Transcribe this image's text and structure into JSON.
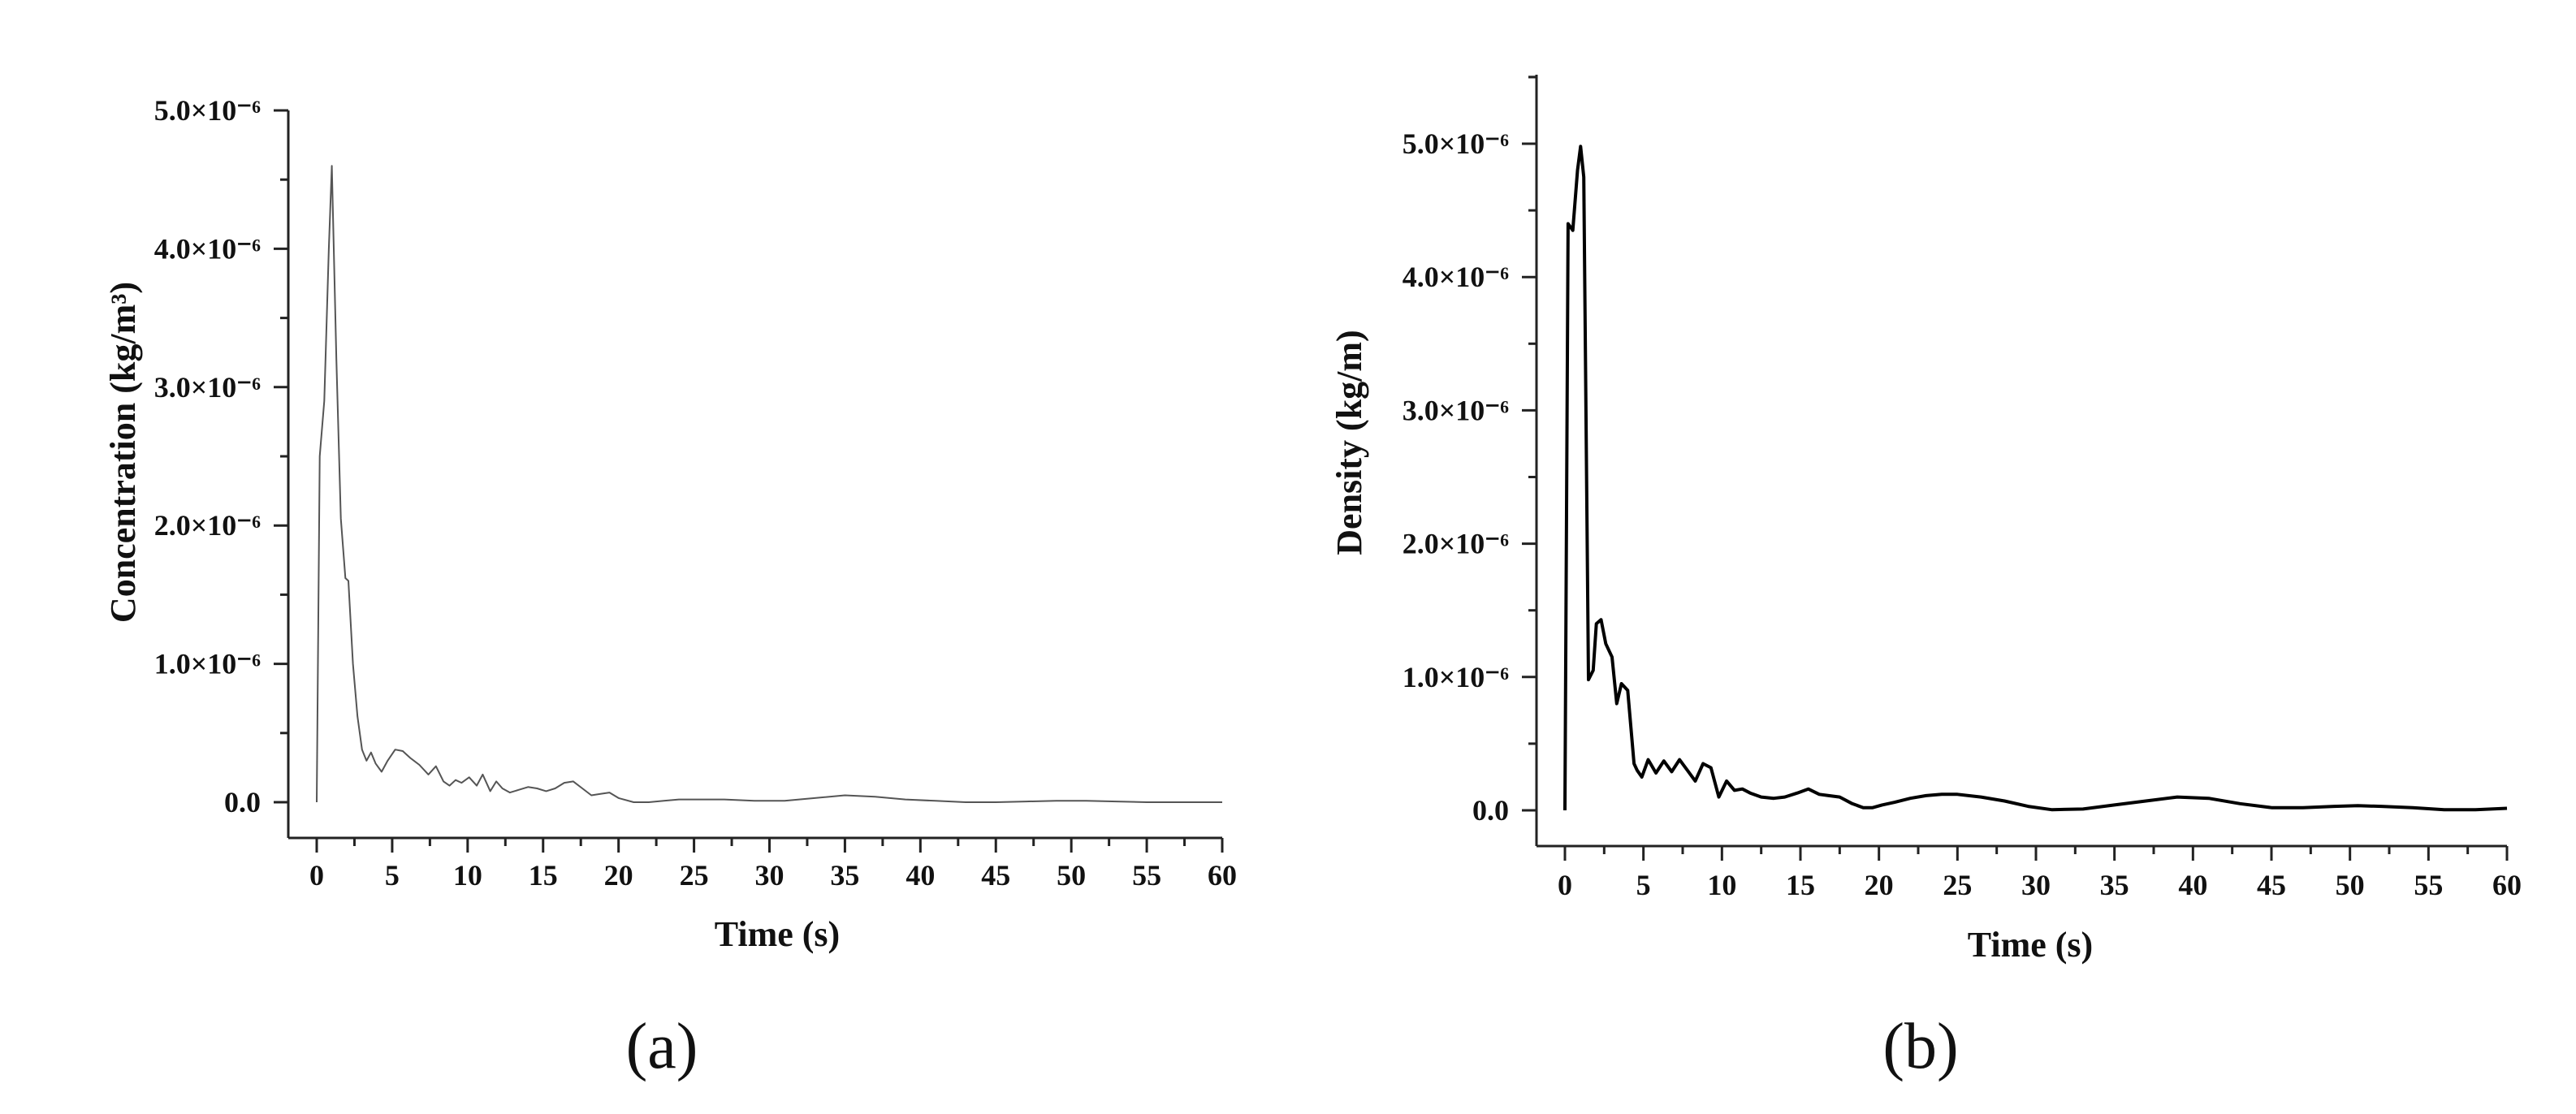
{
  "chart_data": [
    {
      "type": "line",
      "panel_label": "(a)",
      "xlabel": "Time (s)",
      "ylabel": "Concentration (kg/m³)",
      "xlim": [
        0,
        60
      ],
      "ylim": [
        0,
        5e-06
      ],
      "x_ticks": [
        "0",
        "5",
        "10",
        "15",
        "20",
        "25",
        "30",
        "35",
        "40",
        "45",
        "50",
        "55",
        "60"
      ],
      "y_ticks": [
        "0.0",
        "1.0×10⁻⁶",
        "2.0×10⁻⁶",
        "3.0×10⁻⁶",
        "4.0×10⁻⁶",
        "5.0×10⁻⁶"
      ],
      "grid": false,
      "line_color": "#555555",
      "series": [
        {
          "x": [
            0,
            0.2,
            0.5,
            0.8,
            1.0,
            1.3,
            1.6,
            1.9,
            2.1,
            2.4,
            2.7,
            3.0,
            3.3,
            3.6,
            3.9,
            4.3,
            4.7,
            5.2,
            5.7,
            6.2,
            6.8,
            7.4,
            7.9,
            8.4,
            8.8,
            9.2,
            9.6,
            10.1,
            10.6,
            11.0,
            11.5,
            11.9,
            12.3,
            12.8,
            13.4,
            14.0,
            14.6,
            15.2,
            15.8,
            16.4,
            17.0,
            17.6,
            18.2,
            18.8,
            19.4,
            20.0,
            21.0,
            22.0,
            23.0,
            24.0,
            25.0,
            27.0,
            29.0,
            31.0,
            33.0,
            35.0,
            37.0,
            39.0,
            41.0,
            43.0,
            45.0,
            47.0,
            49.0,
            51.0,
            53.0,
            55.0,
            57.0,
            60.0
          ],
          "y": [
            0,
            2.5e-06,
            2.9e-06,
            4e-06,
            4.6e-06,
            3.2e-06,
            2.05e-06,
            1.62e-06,
            1.6e-06,
            1e-06,
            6.2e-07,
            3.8e-07,
            3e-07,
            3.6e-07,
            2.8e-07,
            2.2e-07,
            3e-07,
            3.8e-07,
            3.7e-07,
            3.2e-07,
            2.7e-07,
            2e-07,
            2.6e-07,
            1.5e-07,
            1.2e-07,
            1.6e-07,
            1.4e-07,
            1.8e-07,
            1.2e-07,
            2e-07,
            8e-08,
            1.5e-07,
            1e-07,
            7e-08,
            9e-08,
            1.1e-07,
            1e-07,
            8e-08,
            1e-07,
            1.4e-07,
            1.5e-07,
            1e-07,
            5e-08,
            6e-08,
            7e-08,
            3e-08,
            0.0,
            0.0,
            1e-08,
            2e-08,
            2e-08,
            2e-08,
            1e-08,
            1e-08,
            3e-08,
            5e-08,
            4e-08,
            2e-08,
            1e-08,
            0.0,
            0.0,
            5e-09,
            1e-08,
            1e-08,
            5e-09,
            0.0,
            0.0,
            0.0
          ]
        }
      ]
    },
    {
      "type": "line",
      "panel_label": "(b)",
      "xlabel": "Time (s)",
      "ylabel": "Density (kg/m)",
      "xlim": [
        0,
        60
      ],
      "ylim": [
        0,
        5.5e-06
      ],
      "x_ticks": [
        "0",
        "5",
        "10",
        "15",
        "20",
        "25",
        "30",
        "35",
        "40",
        "45",
        "50",
        "55",
        "60"
      ],
      "y_ticks": [
        "0.0",
        "1.0×10⁻⁶",
        "2.0×10⁻⁶",
        "3.0×10⁻⁶",
        "4.0×10⁻⁶",
        "5.0×10⁻⁶"
      ],
      "grid": false,
      "line_color": "#000000",
      "series": [
        {
          "x": [
            0,
            0.2,
            0.5,
            0.8,
            1.0,
            1.2,
            1.5,
            1.8,
            2.0,
            2.3,
            2.6,
            3.0,
            3.3,
            3.6,
            4.0,
            4.4,
            4.6,
            4.9,
            5.3,
            5.8,
            6.3,
            6.8,
            7.3,
            7.8,
            8.3,
            8.8,
            9.3,
            9.8,
            10.3,
            10.8,
            11.3,
            11.8,
            12.5,
            13.3,
            14.0,
            14.8,
            15.5,
            16.2,
            16.8,
            17.5,
            18.3,
            19.0,
            19.6,
            20.2,
            21.0,
            22.0,
            23.0,
            24.0,
            25.0,
            26.5,
            28.0,
            29.5,
            31.0,
            33.0,
            35.0,
            37.0,
            39.0,
            41.0,
            43.0,
            45.0,
            47.0,
            49.0,
            50.5,
            52.0,
            54.0,
            56.0,
            58.0,
            60.0
          ],
          "y": [
            0,
            4.4e-06,
            4.35e-06,
            4.8e-06,
            4.98e-06,
            4.75e-06,
            9.8e-07,
            1.05e-06,
            1.4e-06,
            1.43e-06,
            1.25e-06,
            1.15e-06,
            8e-07,
            9.5e-07,
            9e-07,
            3.5e-07,
            3e-07,
            2.5e-07,
            3.8e-07,
            2.8e-07,
            3.7e-07,
            2.9e-07,
            3.8e-07,
            3e-07,
            2.2e-07,
            3.5e-07,
            3.2e-07,
            1e-07,
            2.2e-07,
            1.5e-07,
            1.6e-07,
            1.3e-07,
            1e-07,
            9e-08,
            1e-07,
            1.3e-07,
            1.6e-07,
            1.2e-07,
            1.1e-07,
            1e-07,
            5e-08,
            2e-08,
            2e-08,
            4e-08,
            6e-08,
            9e-08,
            1.1e-07,
            1.2e-07,
            1.2e-07,
            1e-07,
            7e-08,
            3e-08,
            5e-09,
            1e-08,
            4e-08,
            7e-08,
            1e-07,
            9e-08,
            5e-08,
            2e-08,
            2e-08,
            3e-08,
            3.5e-08,
            3e-08,
            2e-08,
            5e-09,
            5e-09,
            1.5e-08
          ]
        }
      ]
    }
  ]
}
